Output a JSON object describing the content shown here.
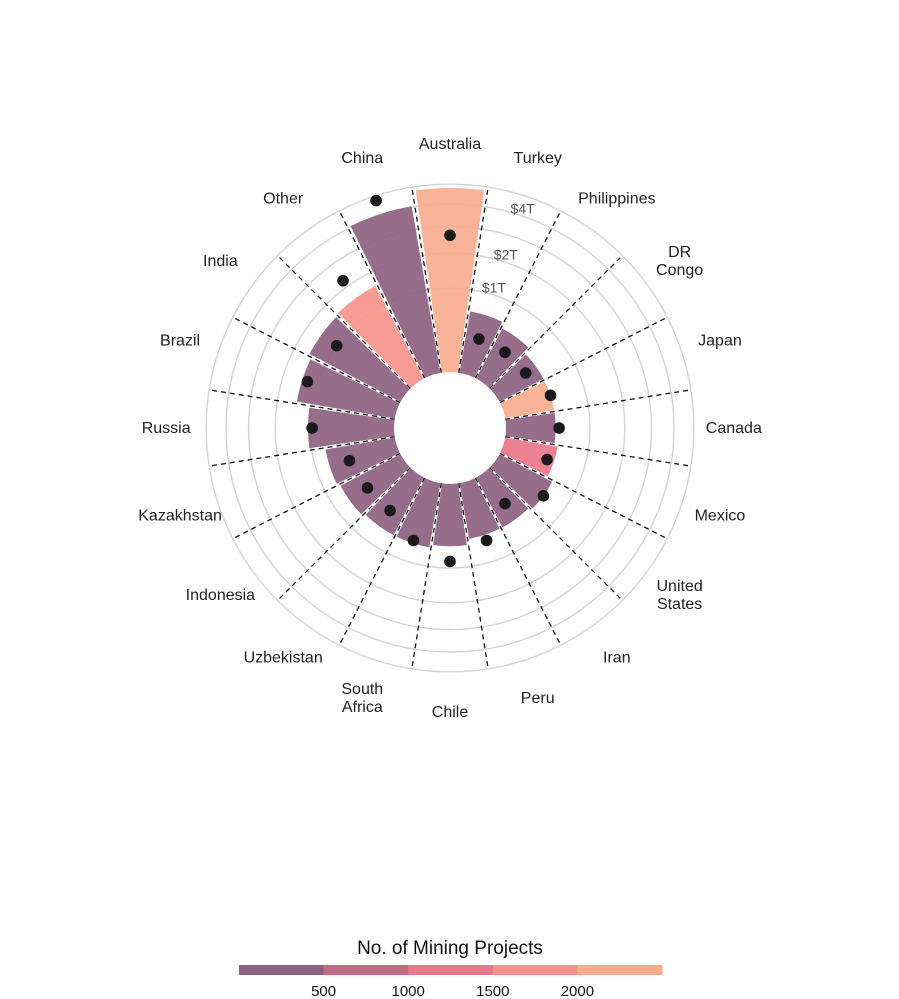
{
  "chart_data": {
    "type": "bar",
    "subtype": "radial",
    "categories": [
      "Australia",
      "Turkey",
      "Philippines",
      "DR Congo",
      "Japan",
      "Canada",
      "Mexico",
      "United States",
      "Iran",
      "Peru",
      "Chile",
      "South Africa",
      "Uzbekistan",
      "Indonesia",
      "Kazakhstan",
      "Russia",
      "Brazil",
      "India",
      "Other",
      "China"
    ],
    "category_labels": [
      [
        "Australia"
      ],
      [
        "Turkey"
      ],
      [
        "Philippines"
      ],
      [
        "DR",
        "Congo"
      ],
      [
        "Japan"
      ],
      [
        "Canada"
      ],
      [
        "Mexico"
      ],
      [
        "United",
        "States"
      ],
      [
        "Iran"
      ],
      [
        "Peru"
      ],
      [
        "Chile"
      ],
      [
        "South",
        "Africa"
      ],
      [
        "Uzbekistan"
      ],
      [
        "Indonesia"
      ],
      [
        "Kazakhstan"
      ],
      [
        "Russia"
      ],
      [
        "Brazil"
      ],
      [
        "India"
      ],
      [
        "Other"
      ],
      [
        "China"
      ]
    ],
    "bar_values": [
      4.8,
      0.55,
      0.45,
      0.35,
      0.35,
      0.35,
      0.4,
      0.5,
      0.45,
      0.45,
      0.55,
      0.6,
      0.6,
      0.65,
      0.7,
      1.05,
      1.4,
      1.5,
      1.55,
      4.05
    ],
    "bar_projects": [
      2000,
      300,
      300,
      300,
      2400,
      300,
      1200,
      400,
      300,
      300,
      300,
      300,
      300,
      300,
      300,
      300,
      300,
      300,
      1900,
      300
    ],
    "point_values": [
      2.65,
      0.2,
      0.2,
      0.2,
      0.35,
      0.4,
      0.3,
      0.5,
      0.2,
      0.55,
      0.85,
      0.55,
      0.3,
      0.3,
      0.35,
      0.95,
      1.25,
      1.0,
      2.25,
      4.75
    ],
    "radial_ticks": [
      1,
      2,
      4
    ],
    "radial_tick_labels": [
      "$1T",
      "$2T",
      "$4T"
    ],
    "radial_max": 5.0,
    "legend": {
      "title": "No. of Mining Projects",
      "tick_values": [
        500,
        1000,
        1500,
        2000
      ],
      "tick_labels": [
        "500",
        "1000",
        "1500",
        "2000"
      ],
      "range": [
        0,
        2500
      ],
      "colors": [
        "#8e6182",
        "#c26b85",
        "#e9768a",
        "#f7938c",
        "#f8ac8f"
      ],
      "placement": "bottom"
    }
  }
}
